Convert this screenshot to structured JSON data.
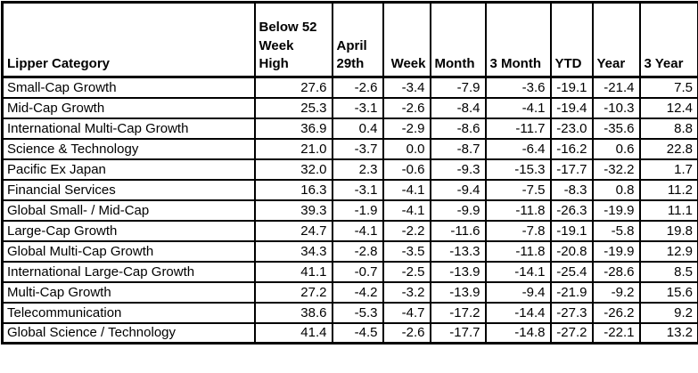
{
  "chart_data": {
    "type": "table",
    "columns": [
      {
        "label": "Lipper Category"
      },
      {
        "label": "Below 52\nWeek\nHigh"
      },
      {
        "label": "April\n29th"
      },
      {
        "label": "Week"
      },
      {
        "label": "Month"
      },
      {
        "label": "3 Month"
      },
      {
        "label": "YTD"
      },
      {
        "label": "Year"
      },
      {
        "label": "3 Year"
      }
    ],
    "rows": [
      {
        "category": "Small-Cap Growth",
        "values": [
          "27.6",
          "-2.6",
          "-3.4",
          "-7.9",
          "-3.6",
          "-19.1",
          "-21.4",
          "7.5"
        ]
      },
      {
        "category": "Mid-Cap Growth",
        "values": [
          "25.3",
          "-3.1",
          "-2.6",
          "-8.4",
          "-4.1",
          "-19.4",
          "-10.3",
          "12.4"
        ]
      },
      {
        "category": "International Multi-Cap Growth",
        "values": [
          "36.9",
          "0.4",
          "-2.9",
          "-8.6",
          "-11.7",
          "-23.0",
          "-35.6",
          "8.8"
        ]
      },
      {
        "category": "Science & Technology",
        "values": [
          "21.0",
          "-3.7",
          "0.0",
          "-8.7",
          "-6.4",
          "-16.2",
          "0.6",
          "22.8"
        ]
      },
      {
        "category": "Pacific Ex Japan",
        "values": [
          "32.0",
          "2.3",
          "-0.6",
          "-9.3",
          "-15.3",
          "-17.7",
          "-32.2",
          "1.7"
        ]
      },
      {
        "category": "Financial Services",
        "values": [
          "16.3",
          "-3.1",
          "-4.1",
          "-9.4",
          "-7.5",
          "-8.3",
          "0.8",
          "11.2"
        ]
      },
      {
        "category": "Global Small- / Mid-Cap",
        "values": [
          "39.3",
          "-1.9",
          "-4.1",
          "-9.9",
          "-11.8",
          "-26.3",
          "-19.9",
          "11.1"
        ]
      },
      {
        "category": "Large-Cap Growth",
        "values": [
          "24.7",
          "-4.1",
          "-2.2",
          "-11.6",
          "-7.8",
          "-19.1",
          "-5.8",
          "19.8"
        ]
      },
      {
        "category": "Global Multi-Cap Growth",
        "values": [
          "34.3",
          "-2.8",
          "-3.5",
          "-13.3",
          "-11.8",
          "-20.8",
          "-19.9",
          "12.9"
        ]
      },
      {
        "category": "International Large-Cap Growth",
        "values": [
          "41.1",
          "-0.7",
          "-2.5",
          "-13.9",
          "-14.1",
          "-25.4",
          "-28.6",
          "8.5"
        ]
      },
      {
        "category": "Multi-Cap Growth",
        "values": [
          "27.2",
          "-4.2",
          "-3.2",
          "-13.9",
          "-9.4",
          "-21.9",
          "-9.2",
          "15.6"
        ]
      },
      {
        "category": "Telecommunication",
        "values": [
          "38.6",
          "-5.3",
          "-4.7",
          "-17.2",
          "-14.4",
          "-27.3",
          "-26.2",
          "9.2"
        ]
      },
      {
        "category": "Global Science / Technology",
        "values": [
          "41.4",
          "-4.5",
          "-2.6",
          "-17.7",
          "-14.8",
          "-27.2",
          "-22.1",
          "13.2"
        ]
      }
    ]
  },
  "colors": {
    "border": "#000000",
    "background": "#ffffff",
    "text": "#000000"
  }
}
